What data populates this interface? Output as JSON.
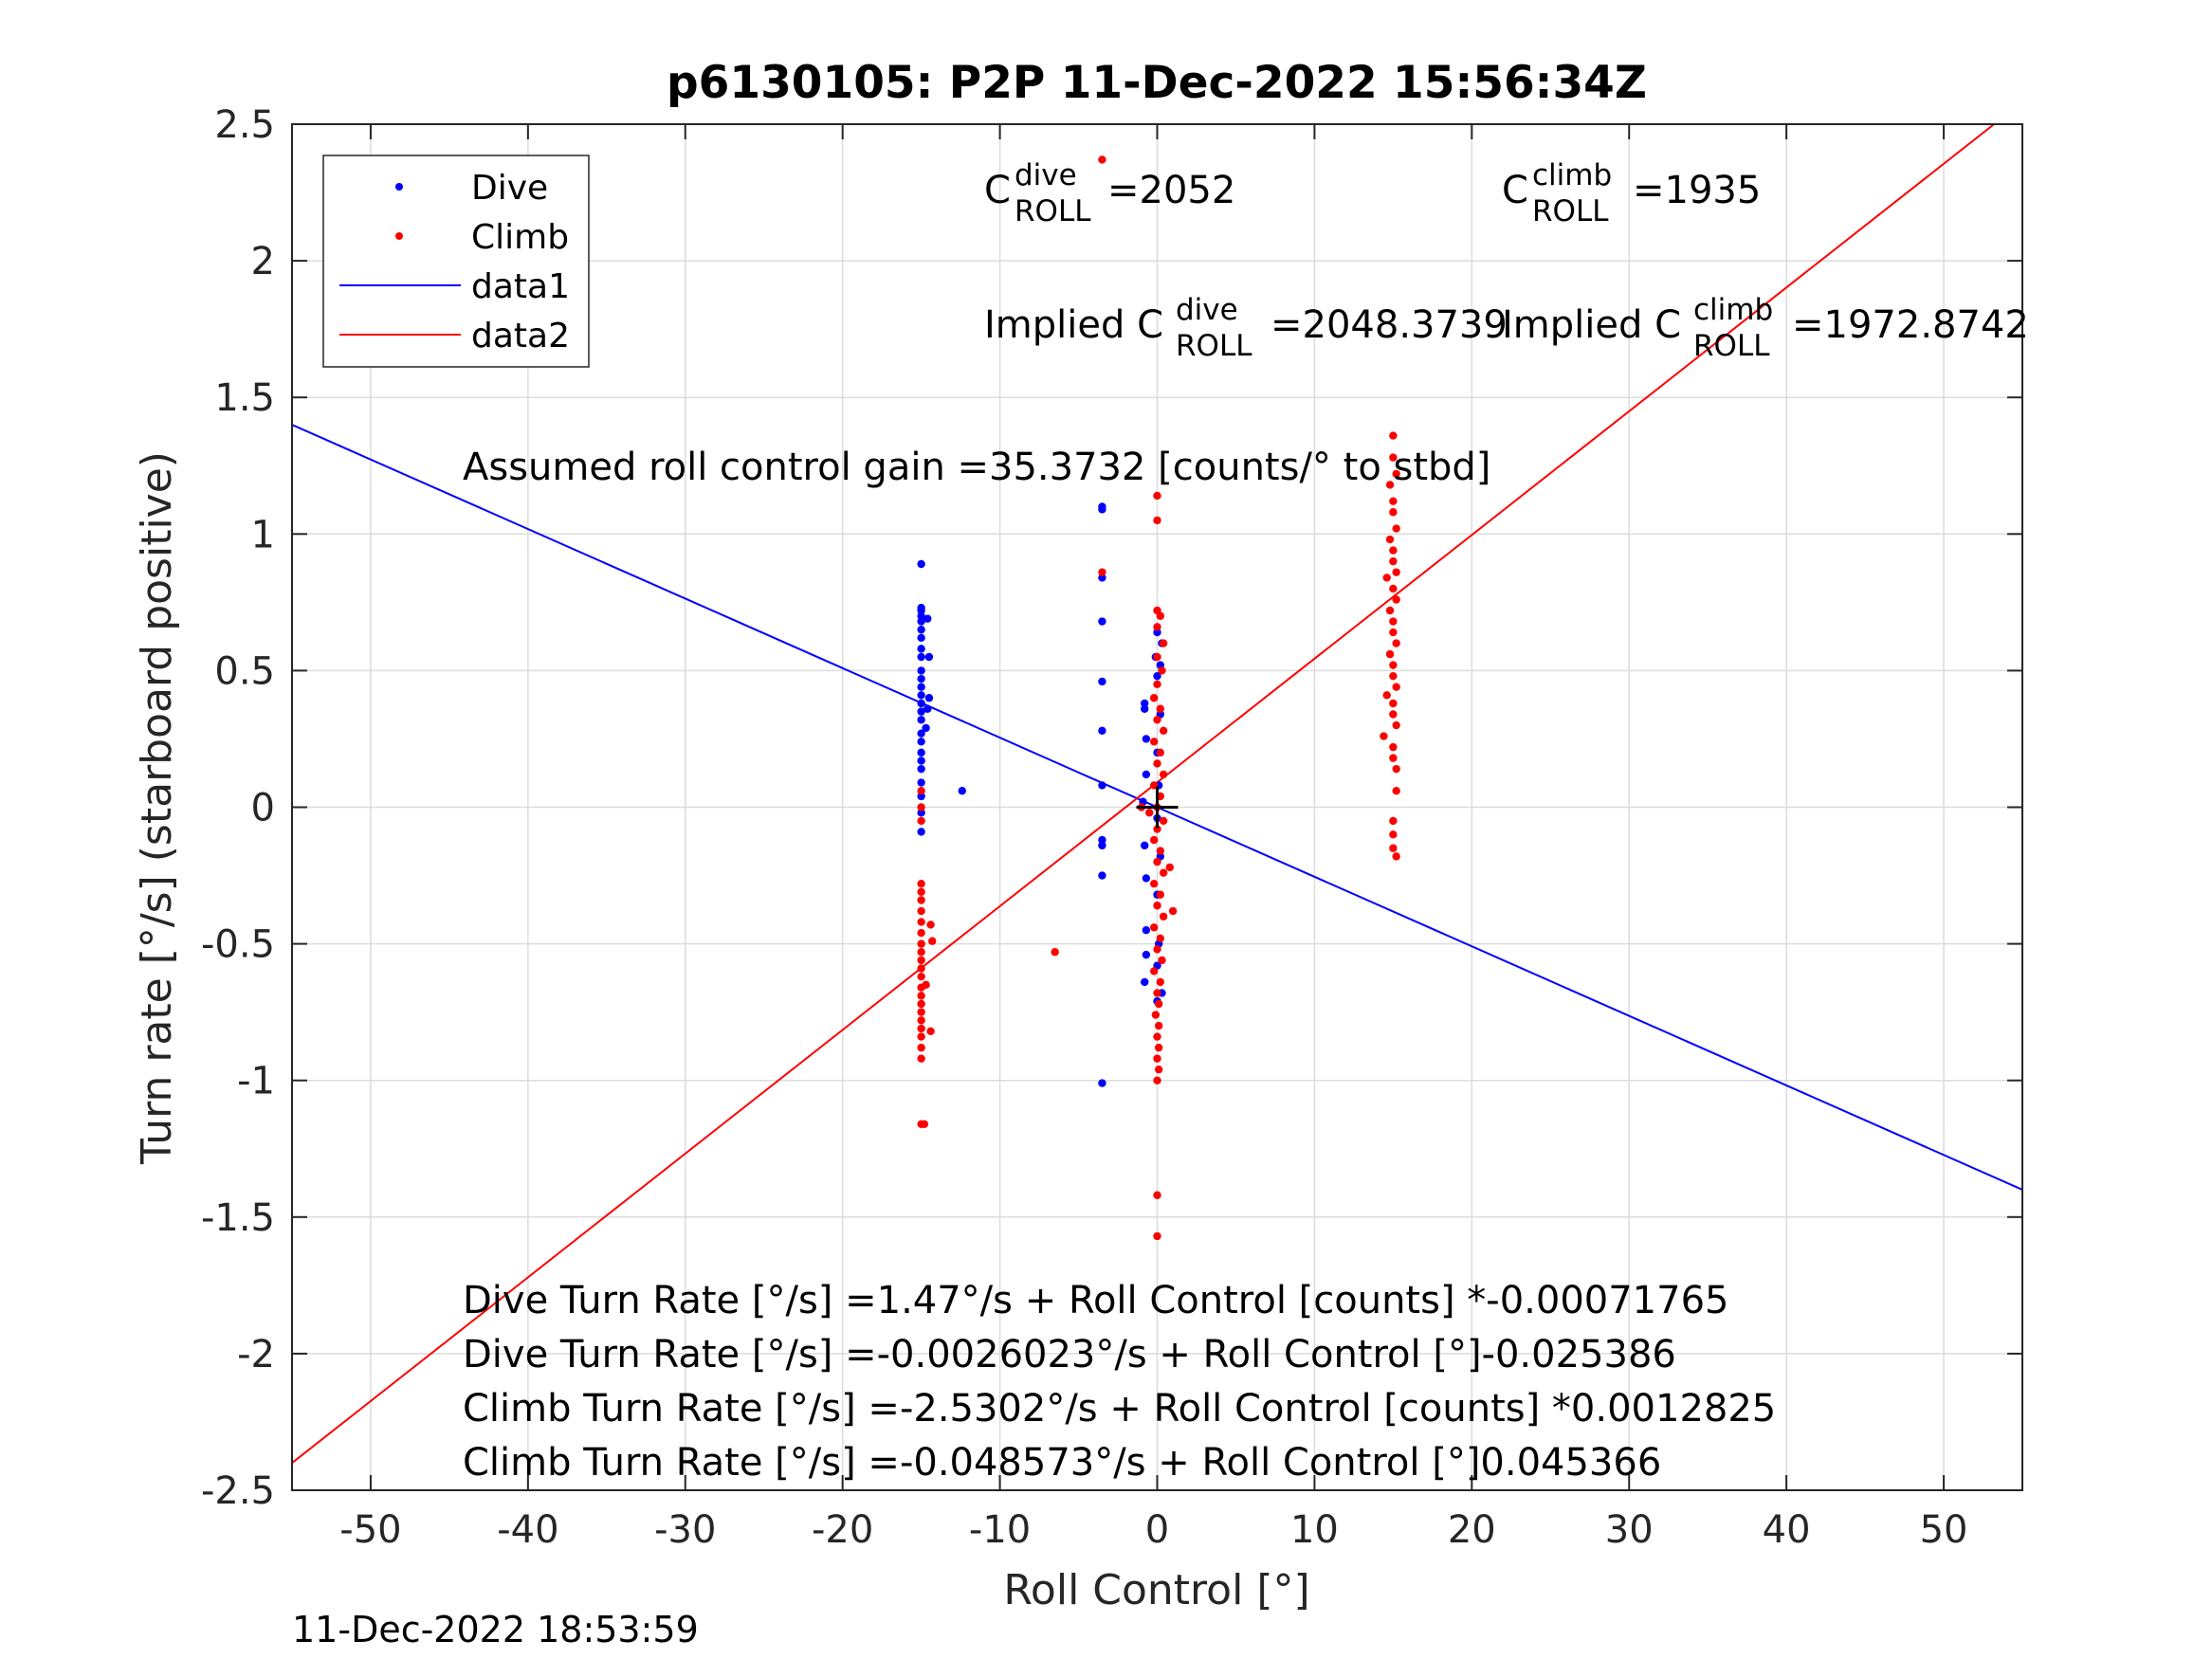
{
  "chart_data": {
    "type": "scatter",
    "title": "p6130105: P2P 11-Dec-2022 15:56:34Z",
    "xlabel": "Roll Control [°]",
    "ylabel": "Turn rate [°/s] (starboard positive)",
    "xlim": [
      -55,
      55
    ],
    "ylim": [
      -2.5,
      2.5
    ],
    "x_ticks": [
      -50,
      -40,
      -30,
      -20,
      -10,
      0,
      10,
      20,
      30,
      40,
      50
    ],
    "y_ticks": [
      -2.5,
      -2,
      -1.5,
      -1,
      -0.5,
      0,
      0.5,
      1,
      1.5,
      2,
      2.5
    ],
    "x_tick_labels": [
      "-50",
      "-40",
      "-30",
      "-20",
      "-10",
      "0",
      "10",
      "20",
      "30",
      "40",
      "50"
    ],
    "y_tick_labels": [
      "-2.5",
      "-2",
      "-1.5",
      "-1",
      "-0.5",
      "0",
      "0.5",
      "1",
      "1.5",
      "2",
      "2.5"
    ],
    "grid": true,
    "legend_position": "top-left",
    "series": [
      {
        "name": "Dive",
        "kind": "points",
        "color": "#0000ff",
        "points": [
          [
            -15,
            0.89
          ],
          [
            -15,
            0.73
          ],
          [
            -15,
            0.72
          ],
          [
            -15,
            0.7
          ],
          [
            -15,
            0.68
          ],
          [
            -15,
            0.65
          ],
          [
            -14.6,
            0.69
          ],
          [
            -15,
            0.62
          ],
          [
            -15,
            0.58
          ],
          [
            -15,
            0.55
          ],
          [
            -14.5,
            0.55
          ],
          [
            -15,
            0.5
          ],
          [
            -15,
            0.47
          ],
          [
            -15,
            0.44
          ],
          [
            -15,
            0.41
          ],
          [
            -15,
            0.38
          ],
          [
            -15,
            0.35
          ],
          [
            -15,
            0.32
          ],
          [
            -14.7,
            0.29
          ],
          [
            -15,
            0.27
          ],
          [
            -15,
            0.24
          ],
          [
            -15,
            0.2
          ],
          [
            -15,
            0.17
          ],
          [
            -15,
            0.14
          ],
          [
            -15,
            0.09
          ],
          [
            -15,
            0.04
          ],
          [
            -15,
            -0.02
          ],
          [
            -15,
            -0.09
          ],
          [
            -14.6,
            0.36
          ],
          [
            -14.5,
            0.4
          ],
          [
            -12.4,
            0.06
          ],
          [
            -3.5,
            1.1
          ],
          [
            -3.5,
            1.09
          ],
          [
            -3.5,
            0.84
          ],
          [
            -3.5,
            0.68
          ],
          [
            -3.5,
            0.46
          ],
          [
            -3.5,
            0.28
          ],
          [
            -3.5,
            0.08
          ],
          [
            -3.5,
            -0.12
          ],
          [
            -3.5,
            -0.14
          ],
          [
            -3.5,
            -0.25
          ],
          [
            -3.5,
            -1.01
          ],
          [
            0,
            0.64
          ],
          [
            0.3,
            0.6
          ],
          [
            -0.1,
            0.55
          ],
          [
            0.2,
            0.52
          ],
          [
            0,
            0.48
          ],
          [
            -0.8,
            0.38
          ],
          [
            -0.8,
            0.36
          ],
          [
            0.2,
            0.34
          ],
          [
            -0.7,
            0.25
          ],
          [
            0,
            0.2
          ],
          [
            -0.7,
            0.12
          ],
          [
            0.1,
            0.08
          ],
          [
            -0.9,
            0.02
          ],
          [
            0,
            -0.04
          ],
          [
            -0.8,
            -0.14
          ],
          [
            0.2,
            -0.18
          ],
          [
            -0.7,
            -0.26
          ],
          [
            0,
            -0.32
          ],
          [
            -0.7,
            -0.45
          ],
          [
            0.1,
            -0.5
          ],
          [
            -0.7,
            -0.54
          ],
          [
            0,
            -0.58
          ],
          [
            -0.8,
            -0.64
          ],
          [
            0,
            -0.71
          ],
          [
            0.3,
            -0.68
          ]
        ]
      },
      {
        "name": "Climb",
        "kind": "points",
        "color": "#ff0000",
        "points": [
          [
            -3.5,
            2.37
          ],
          [
            -3.5,
            0.86
          ],
          [
            -15,
            -1.16
          ],
          [
            -14.8,
            -1.16
          ],
          [
            -6.5,
            -0.53
          ],
          [
            -15,
            0.06
          ],
          [
            -15,
            0.0
          ],
          [
            -15,
            -0.05
          ],
          [
            -15,
            -0.28
          ],
          [
            -15,
            -0.31
          ],
          [
            -15,
            -0.34
          ],
          [
            -15,
            -0.38
          ],
          [
            -15,
            -0.42
          ],
          [
            -15,
            -0.46
          ],
          [
            -15,
            -0.5
          ],
          [
            -15,
            -0.53
          ],
          [
            -15,
            -0.56
          ],
          [
            -15,
            -0.59
          ],
          [
            -15,
            -0.62
          ],
          [
            -15,
            -0.66
          ],
          [
            -15,
            -0.69
          ],
          [
            -15,
            -0.72
          ],
          [
            -15,
            -0.75
          ],
          [
            -15,
            -0.78
          ],
          [
            -15,
            -0.81
          ],
          [
            -15,
            -0.84
          ],
          [
            -15,
            -0.88
          ],
          [
            -15,
            -0.92
          ],
          [
            -14.4,
            -0.43
          ],
          [
            -14.3,
            -0.49
          ],
          [
            -14.4,
            -0.82
          ],
          [
            -14.7,
            -0.65
          ],
          [
            0,
            1.14
          ],
          [
            0,
            1.05
          ],
          [
            0,
            0.72
          ],
          [
            0.2,
            0.7
          ],
          [
            0,
            0.66
          ],
          [
            0.4,
            0.6
          ],
          [
            0,
            0.55
          ],
          [
            0.3,
            0.5
          ],
          [
            0,
            0.45
          ],
          [
            -0.2,
            0.4
          ],
          [
            0.2,
            0.36
          ],
          [
            0,
            0.32
          ],
          [
            0.4,
            0.28
          ],
          [
            -0.2,
            0.24
          ],
          [
            0.2,
            0.2
          ],
          [
            0,
            0.16
          ],
          [
            0.4,
            0.12
          ],
          [
            -0.2,
            0.08
          ],
          [
            0.2,
            0.04
          ],
          [
            0,
            0.0
          ],
          [
            -0.5,
            -0.02
          ],
          [
            0.4,
            -0.05
          ],
          [
            0,
            -0.08
          ],
          [
            -0.2,
            -0.12
          ],
          [
            0.2,
            -0.16
          ],
          [
            0,
            -0.2
          ],
          [
            0.4,
            -0.24
          ],
          [
            -0.2,
            -0.28
          ],
          [
            0.2,
            -0.32
          ],
          [
            0,
            -0.36
          ],
          [
            0.4,
            -0.4
          ],
          [
            -0.2,
            -0.44
          ],
          [
            0.2,
            -0.48
          ],
          [
            0,
            -0.52
          ],
          [
            0.3,
            -0.56
          ],
          [
            -0.2,
            -0.6
          ],
          [
            0.2,
            -0.64
          ],
          [
            0,
            -0.68
          ],
          [
            0.1,
            -0.72
          ],
          [
            -0.1,
            -0.76
          ],
          [
            0.1,
            -0.8
          ],
          [
            0,
            -0.84
          ],
          [
            0.1,
            -0.88
          ],
          [
            0,
            -0.92
          ],
          [
            0.1,
            -0.96
          ],
          [
            0,
            -1.0
          ],
          [
            0,
            -1.42
          ],
          [
            0,
            -1.57
          ],
          [
            1.0,
            -0.38
          ],
          [
            0.8,
            -0.22
          ],
          [
            -1.0,
            0.0
          ],
          [
            15,
            1.36
          ],
          [
            15,
            1.28
          ],
          [
            15.2,
            1.22
          ],
          [
            14.8,
            1.18
          ],
          [
            15,
            1.12
          ],
          [
            15,
            1.08
          ],
          [
            15.2,
            1.02
          ],
          [
            14.8,
            0.98
          ],
          [
            15,
            0.94
          ],
          [
            15,
            0.9
          ],
          [
            15.2,
            0.86
          ],
          [
            14.6,
            0.84
          ],
          [
            15,
            0.8
          ],
          [
            15.2,
            0.76
          ],
          [
            14.8,
            0.72
          ],
          [
            15,
            0.68
          ],
          [
            15,
            0.64
          ],
          [
            15.2,
            0.6
          ],
          [
            14.8,
            0.56
          ],
          [
            15,
            0.52
          ],
          [
            15,
            0.48
          ],
          [
            15.2,
            0.44
          ],
          [
            14.6,
            0.41
          ],
          [
            15,
            0.38
          ],
          [
            15,
            0.34
          ],
          [
            15.2,
            0.3
          ],
          [
            14.4,
            0.26
          ],
          [
            15,
            0.22
          ],
          [
            15,
            0.18
          ],
          [
            15.2,
            0.14
          ],
          [
            15.2,
            0.06
          ],
          [
            15,
            -0.05
          ],
          [
            15,
            -0.1
          ],
          [
            15,
            -0.15
          ],
          [
            15.2,
            -0.18
          ]
        ]
      },
      {
        "name": "data1",
        "kind": "line",
        "color": "#0000ff",
        "x": [
          -55,
          55
        ],
        "y": [
          1.4,
          -1.4
        ]
      },
      {
        "name": "data2",
        "kind": "line",
        "color": "#ff0000",
        "x": [
          -55,
          53.2
        ],
        "y": [
          -2.4,
          2.5
        ]
      }
    ],
    "marker": {
      "x": 0,
      "y": 0,
      "color": "#000000"
    },
    "annotations": {
      "c_dive_base": "C",
      "c_dive_sup": "dive",
      "c_dive_sub": "ROLL",
      "c_dive_value": "=2052",
      "c_climb_base": "C",
      "c_climb_sup": "climb",
      "c_climb_sub": "ROLL",
      "c_climb_value": "=1935",
      "implied_dive_prefix": "Implied C",
      "implied_dive_sup": "dive",
      "implied_dive_sub": "ROLL",
      "implied_dive_value": "=2048.3739",
      "implied_climb_prefix": "Implied C",
      "implied_climb_sup": "climb",
      "implied_climb_sub": "ROLL",
      "implied_climb_value": "=1972.8742",
      "gain": "Assumed roll control gain =35.3732 [counts/° to stbd]",
      "fit_lines": [
        "Dive Turn Rate [°/s] =1.47°/s + Roll Control [counts] *-0.00071765",
        "Dive Turn Rate [°/s] =-0.0026023°/s + Roll Control [°]-0.025386",
        "Climb Turn Rate [°/s] =-2.5302°/s + Roll Control [counts] *0.0012825",
        "Climb Turn Rate [°/s] =-0.048573°/s + Roll Control [°]0.045366"
      ]
    },
    "footer": "11-Dec-2022 18:53:59"
  }
}
